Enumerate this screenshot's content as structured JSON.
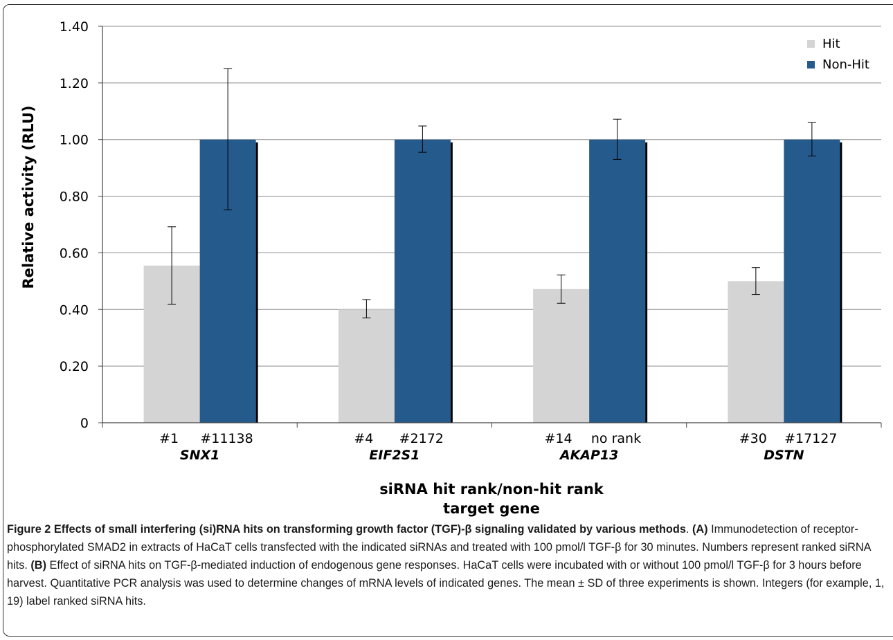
{
  "chart_data": {
    "type": "bar",
    "ylabel": "Relative activity (RLU)",
    "xlabel_lines": [
      "siRNA hit rank/non-hit rank",
      "target gene"
    ],
    "ylim": [
      0,
      1.4
    ],
    "yticks": [
      {
        "value": 0,
        "label": "0"
      },
      {
        "value": 0.2,
        "label": "0.20"
      },
      {
        "value": 0.4,
        "label": "0.40"
      },
      {
        "value": 0.6,
        "label": "0.60"
      },
      {
        "value": 0.8,
        "label": "0.80"
      },
      {
        "value": 1.0,
        "label": "1.00"
      },
      {
        "value": 1.2,
        "label": "1.20"
      },
      {
        "value": 1.4,
        "label": "1.40"
      }
    ],
    "grid": true,
    "legend_position": "top-right",
    "categories": [
      "SNX1",
      "EIF2S1",
      "AKAP13",
      "DSTN"
    ],
    "rank_labels": [
      {
        "hit": "#1",
        "nonhit": "#11138"
      },
      {
        "hit": "#4",
        "nonhit": "#2172"
      },
      {
        "hit": "#14",
        "nonhit": "no rank"
      },
      {
        "hit": "#30",
        "nonhit": "#17127"
      }
    ],
    "series": [
      {
        "name": "Hit",
        "color": "#d4d4d4",
        "values": [
          0.555,
          0.4,
          0.472,
          0.5
        ],
        "err_low": [
          0.418,
          0.37,
          0.422,
          0.453
        ],
        "err_high": [
          0.692,
          0.435,
          0.522,
          0.548
        ]
      },
      {
        "name": "Non-Hit",
        "color": "#255a8c",
        "values": [
          1.0,
          1.0,
          1.0,
          1.0
        ],
        "err_low": [
          0.752,
          0.955,
          0.93,
          0.942
        ],
        "err_high": [
          1.25,
          1.048,
          1.072,
          1.06
        ]
      }
    ]
  },
  "caption": {
    "title": "Figure 2 Effects of small interfering (si)RNA hits on transforming growth factor (TGF)-β signaling validated by various methods",
    "title_suffix": ". ",
    "label_a": "(A)",
    "text_a": " Immunodetection of receptor-phosphorylated SMAD2 in extracts of HaCaT cells transfected with the indicated siRNAs and treated with 100 pmol/l TGF-β for 30 minutes. Numbers represent ranked siRNA hits. ",
    "label_b": "(B)",
    "text_b": " Effect of siRNA hits on TGF-β-mediated induction of endogenous gene responses. HaCaT cells were incubated with or without 100 pmol/l TGF-β for 3 hours before harvest. Quantitative PCR analysis was used to determine changes of mRNA levels of indicated genes. The mean ± SD of three experiments is shown. Integers (for example, 1, 19) label ranked siRNA hits."
  }
}
